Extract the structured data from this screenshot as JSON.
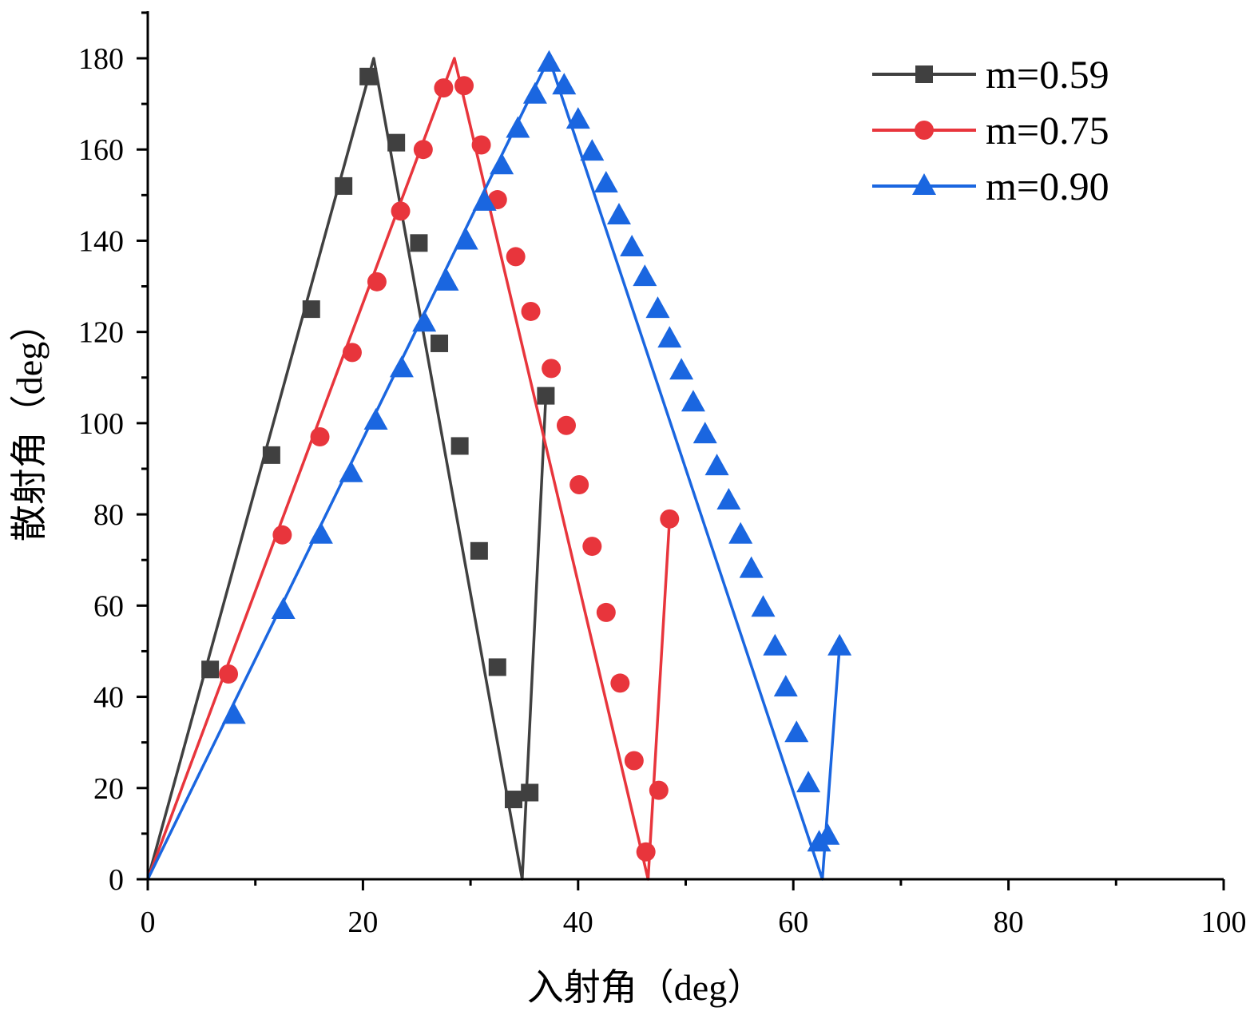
{
  "chart_data": {
    "type": "line",
    "title": "",
    "xlabel": "入射角（deg）",
    "ylabel": "散射角（deg）",
    "xlim": [
      0,
      100
    ],
    "ylim": [
      0,
      180
    ],
    "x_ticks": [
      "0",
      "20",
      "40",
      "60",
      "80",
      "100"
    ],
    "y_ticks": [
      "0",
      "20",
      "40",
      "60",
      "80",
      "100",
      "120",
      "140",
      "160",
      "180"
    ],
    "legend_position": "top-right",
    "grid": false,
    "series": [
      {
        "name": "m=0.59",
        "color": "#404040",
        "marker": "square",
        "line": [
          [
            0,
            0
          ],
          [
            21,
            180
          ],
          [
            34.8,
            0
          ],
          [
            37,
            106
          ]
        ],
        "markers": [
          [
            5.8,
            46
          ],
          [
            11.5,
            93
          ],
          [
            15.2,
            125
          ],
          [
            18.2,
            152
          ],
          [
            20.5,
            176
          ],
          [
            23.1,
            161.5
          ],
          [
            25.2,
            139.5
          ],
          [
            27.1,
            117.5
          ],
          [
            29.0,
            95
          ],
          [
            30.8,
            72
          ],
          [
            32.5,
            46.5
          ],
          [
            34.0,
            17.5
          ],
          [
            35.5,
            19
          ],
          [
            37.0,
            106
          ]
        ]
      },
      {
        "name": "m=0.75",
        "color": "#e8353c",
        "marker": "circle",
        "line": [
          [
            0,
            0
          ],
          [
            28.5,
            180
          ],
          [
            46.5,
            0
          ],
          [
            48.5,
            79
          ]
        ],
        "markers": [
          [
            7.5,
            45
          ],
          [
            12.5,
            75.5
          ],
          [
            16.0,
            97
          ],
          [
            19.0,
            115.5
          ],
          [
            21.3,
            131
          ],
          [
            23.5,
            146.5
          ],
          [
            25.6,
            160
          ],
          [
            27.5,
            173.5
          ],
          [
            29.4,
            174
          ],
          [
            31.0,
            161
          ],
          [
            32.5,
            149
          ],
          [
            34.2,
            136.5
          ],
          [
            35.6,
            124.5
          ],
          [
            37.5,
            112
          ],
          [
            38.9,
            99.5
          ],
          [
            40.1,
            86.5
          ],
          [
            41.3,
            73
          ],
          [
            42.6,
            58.5
          ],
          [
            43.9,
            43
          ],
          [
            45.2,
            26
          ],
          [
            46.3,
            6
          ],
          [
            47.5,
            19.5
          ],
          [
            48.5,
            79
          ]
        ]
      },
      {
        "name": "m=0.90",
        "color": "#1a66e0",
        "marker": "triangle",
        "line": [
          [
            0,
            0
          ],
          [
            37.3,
            180
          ],
          [
            62.7,
            0
          ],
          [
            64.3,
            51
          ]
        ],
        "markers": [
          [
            8.0,
            36
          ],
          [
            12.6,
            59
          ],
          [
            16.1,
            75.5
          ],
          [
            18.9,
            89
          ],
          [
            21.2,
            100.5
          ],
          [
            23.6,
            112
          ],
          [
            25.7,
            122
          ],
          [
            27.8,
            131
          ],
          [
            29.6,
            140
          ],
          [
            31.3,
            148.5
          ],
          [
            32.9,
            156.5
          ],
          [
            34.4,
            164.5
          ],
          [
            36.0,
            172
          ],
          [
            37.3,
            179
          ],
          [
            38.7,
            174
          ],
          [
            40.0,
            166.5
          ],
          [
            41.3,
            159.5
          ],
          [
            42.6,
            152.5
          ],
          [
            43.8,
            145.5
          ],
          [
            45.0,
            138.5
          ],
          [
            46.2,
            132
          ],
          [
            47.4,
            125
          ],
          [
            48.5,
            118.5
          ],
          [
            49.6,
            111.5
          ],
          [
            50.7,
            104.5
          ],
          [
            51.8,
            97.5
          ],
          [
            52.9,
            90.5
          ],
          [
            54.0,
            83
          ],
          [
            55.1,
            75.5
          ],
          [
            56.1,
            68
          ],
          [
            57.2,
            59.5
          ],
          [
            58.3,
            51
          ],
          [
            59.3,
            42
          ],
          [
            60.3,
            32
          ],
          [
            61.4,
            21
          ],
          [
            62.4,
            8
          ],
          [
            63.2,
            9.5
          ],
          [
            64.3,
            51
          ]
        ]
      }
    ]
  }
}
